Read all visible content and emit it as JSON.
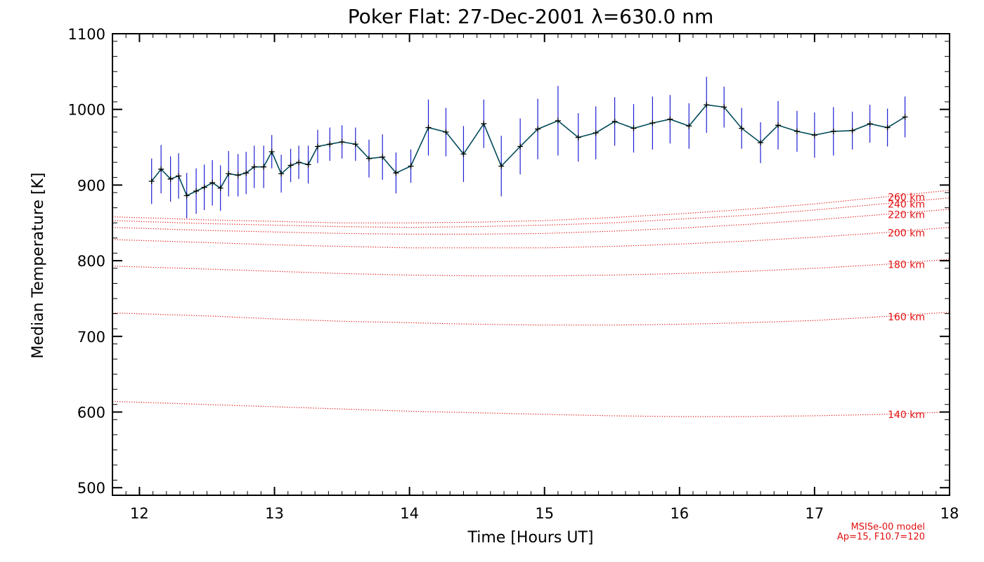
{
  "chart_data": {
    "type": "line",
    "title": "Poker Flat: 27-Dec-2001 λ=630.0 nm",
    "xlabel": "Time [Hours UT]",
    "ylabel": "Median Temperature [K]",
    "xlim": [
      11.8,
      18
    ],
    "ylim": [
      490,
      1100
    ],
    "xticks": [
      12,
      13,
      14,
      15,
      16,
      17,
      18
    ],
    "yticks": [
      500,
      600,
      700,
      800,
      900,
      1000,
      1100
    ],
    "grid": false,
    "colors": {
      "data_line": "#004a5a",
      "errorbar": "#1f1fd6",
      "marker": "#000000",
      "model": "#e01010",
      "axes": "#000000"
    },
    "series": [
      {
        "name": "Median Temperature",
        "x": [
          12.09,
          12.16,
          12.23,
          12.29,
          12.35,
          12.42,
          12.48,
          12.54,
          12.6,
          12.66,
          12.73,
          12.79,
          12.85,
          12.92,
          12.98,
          13.05,
          13.12,
          13.18,
          13.25,
          13.32,
          13.41,
          13.5,
          13.6,
          13.7,
          13.8,
          13.9,
          14.01,
          14.14,
          14.27,
          14.4,
          14.55,
          14.68,
          14.82,
          14.95,
          15.1,
          15.25,
          15.38,
          15.52,
          15.66,
          15.8,
          15.93,
          16.07,
          16.2,
          16.33,
          16.46,
          16.6,
          16.73,
          16.87,
          17.0,
          17.14,
          17.28,
          17.41,
          17.54,
          17.67
        ],
        "y": [
          905,
          921,
          908,
          912,
          886,
          892,
          897,
          903,
          896,
          915,
          913,
          916,
          924,
          924,
          944,
          915,
          926,
          930,
          927,
          951,
          954,
          957,
          954,
          935,
          937,
          916,
          925,
          976,
          970,
          941,
          981,
          925,
          951,
          974,
          985,
          963,
          969,
          984,
          975,
          982,
          987,
          978,
          1006,
          1003,
          975,
          956,
          979,
          971,
          966,
          971,
          972,
          981,
          976,
          990
        ],
        "err": [
          30,
          32,
          30,
          30,
          30,
          30,
          30,
          30,
          30,
          30,
          28,
          28,
          28,
          28,
          22,
          25,
          22,
          22,
          25,
          22,
          22,
          22,
          22,
          25,
          30,
          27,
          22,
          37,
          32,
          37,
          32,
          40,
          37,
          40,
          46,
          32,
          35,
          32,
          32,
          35,
          32,
          30,
          37,
          27,
          27,
          27,
          32,
          27,
          30,
          32,
          25,
          25,
          25,
          27
        ]
      }
    ],
    "model_curves": [
      {
        "label": "140 km",
        "x": [
          11.8,
          12.5,
          13.0,
          13.5,
          14.0,
          14.5,
          15.0,
          15.5,
          16.0,
          16.5,
          17.0,
          17.5,
          18.0
        ],
        "y": [
          614,
          610,
          607,
          604,
          601,
          599,
          597,
          595,
          594,
          594,
          595,
          597,
          600
        ]
      },
      {
        "label": "160 km",
        "x": [
          11.8,
          12.5,
          13.0,
          13.5,
          14.0,
          14.5,
          15.0,
          15.5,
          16.0,
          16.5,
          17.0,
          17.5,
          18.0
        ],
        "y": [
          731,
          727,
          723,
          720,
          718,
          716,
          715,
          715,
          716,
          718,
          721,
          726,
          732
        ]
      },
      {
        "label": "180 km",
        "x": [
          11.8,
          12.5,
          13.0,
          13.5,
          14.0,
          14.5,
          15.0,
          15.5,
          16.0,
          16.5,
          17.0,
          17.5,
          18.0
        ],
        "y": [
          793,
          789,
          786,
          783,
          781,
          780,
          780,
          781,
          783,
          786,
          790,
          795,
          802
        ]
      },
      {
        "label": "200 km",
        "x": [
          11.8,
          12.5,
          13.0,
          13.5,
          14.0,
          14.5,
          15.0,
          15.5,
          16.0,
          16.5,
          17.0,
          17.5,
          18.0
        ],
        "y": [
          828,
          824,
          821,
          819,
          817,
          817,
          817,
          819,
          822,
          826,
          831,
          837,
          844
        ]
      },
      {
        "label": "220 km",
        "x": [
          11.8,
          12.5,
          13.0,
          13.5,
          14.0,
          14.5,
          15.0,
          15.5,
          16.0,
          16.5,
          17.0,
          17.5,
          18.0
        ],
        "y": [
          844,
          840,
          838,
          836,
          835,
          835,
          836,
          839,
          843,
          848,
          854,
          861,
          868
        ]
      },
      {
        "label": "240 km",
        "x": [
          11.8,
          12.5,
          13.0,
          13.5,
          14.0,
          14.5,
          15.0,
          15.5,
          16.0,
          16.5,
          17.0,
          17.5,
          18.0
        ],
        "y": [
          853,
          849,
          847,
          845,
          844,
          845,
          847,
          850,
          855,
          860,
          867,
          875,
          883
        ]
      },
      {
        "label": "260 km",
        "x": [
          11.8,
          12.5,
          13.0,
          13.5,
          14.0,
          14.5,
          15.0,
          15.5,
          16.0,
          16.5,
          17.0,
          17.5,
          18.0
        ],
        "y": [
          858,
          854,
          852,
          850,
          850,
          851,
          853,
          857,
          862,
          868,
          875,
          884,
          893
        ]
      }
    ],
    "annotations": [
      "MSISe-00 model",
      "Ap=15, F10.7=120"
    ]
  }
}
